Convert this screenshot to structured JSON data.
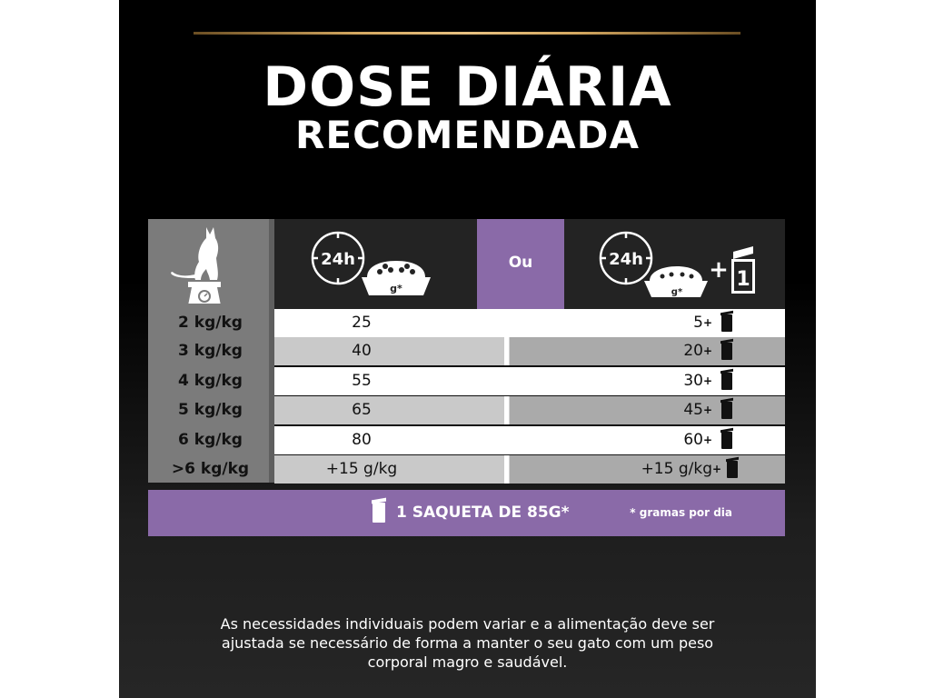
{
  "title": {
    "line1": "DOSE DIÁRIA",
    "line2": "RECOMENDADA"
  },
  "table": {
    "header": {
      "dry_only_label": "24h",
      "dry_only_unit": "g*",
      "or_label": "Ou",
      "mixed_label": "24h",
      "mixed_unit": "g*",
      "mixed_plus": "+",
      "mixed_pouch_count": "1"
    },
    "rows": [
      {
        "weight": "2 kg/kg",
        "dry": "25",
        "mixed": "5",
        "plus": "+"
      },
      {
        "weight": "3 kg/kg",
        "dry": "40",
        "mixed": "20",
        "plus": "+"
      },
      {
        "weight": "4 kg/kg",
        "dry": "55",
        "mixed": "30",
        "plus": "+"
      },
      {
        "weight": "5 kg/kg",
        "dry": "65",
        "mixed": "45",
        "plus": "+"
      },
      {
        "weight": "6 kg/kg",
        "dry": "80",
        "mixed": "60",
        "plus": "+"
      },
      {
        "weight": ">6  kg/kg",
        "dry": "+15 g/kg",
        "mixed": "+15 g/kg",
        "plus": "+"
      }
    ],
    "footer": {
      "pouch_label": "1 SAQUETA DE 85G*",
      "note": "* gramas por dia"
    }
  },
  "disclaimer": {
    "line1": "As necessidades individuais podem variar e a alimentação deve ser",
    "line2": "ajustada se necessário de forma a manter o seu gato com um peso",
    "line3": "corporal magro e saudável."
  },
  "colors": {
    "accent_purple": "#8a6aa8",
    "gold": "#d4a861",
    "row_light": "#ffffff",
    "row_dark": "#b9b9b9"
  }
}
